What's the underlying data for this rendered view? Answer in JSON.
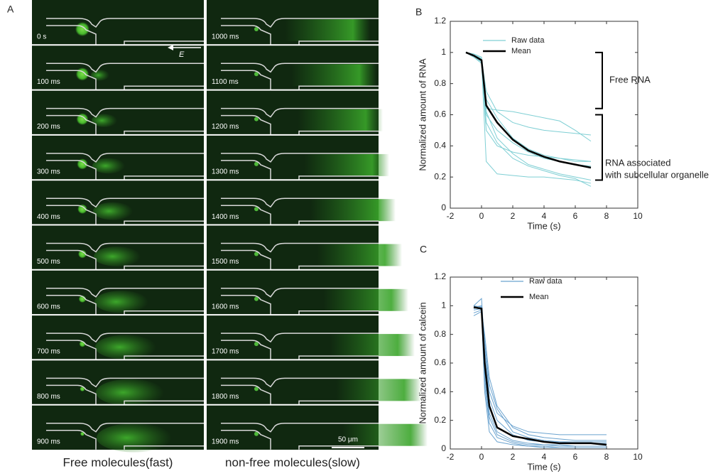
{
  "panel_a": {
    "label": "A",
    "field_label": "E",
    "scale_bar": "50 μm",
    "left": {
      "caption": "Free molecules(fast)",
      "times": [
        "0 s",
        "100 ms",
        "200 ms",
        "300 ms",
        "400 ms",
        "500 ms",
        "600 ms",
        "700 ms",
        "800 ms",
        "900 ms"
      ]
    },
    "right": {
      "caption": "non-free molecules(slow)",
      "times": [
        "1000 ms",
        "1100 ms",
        "1200 ms",
        "1300 ms",
        "1400 ms",
        "1500 ms",
        "1600 ms",
        "1700 ms",
        "1800 ms",
        "1900 ms"
      ]
    }
  },
  "chart_data": [
    {
      "type": "line",
      "label": "B",
      "x_label": "Time  (s)",
      "y_label": "Normalized amount of RNA",
      "xlim": [
        -2,
        10
      ],
      "xticks": [
        -2,
        0,
        2,
        4,
        6,
        8,
        10
      ],
      "ylim": [
        0,
        1.2
      ],
      "yticks": [
        0,
        0.2,
        0.4,
        0.6,
        0.8,
        1,
        1.2
      ],
      "grid": false,
      "legend": "top-left",
      "annotations": [
        [
          "Free RNA"
        ],
        [
          "RNA associated",
          "with subcellular organelle"
        ]
      ],
      "x": [
        -1,
        -0.5,
        0,
        0.3,
        1,
        2,
        3,
        4,
        5,
        6,
        7
      ],
      "series": [
        {
          "name": "Raw data",
          "color": "#7fcfd4",
          "values": [
            [
              1,
              0.99,
              0.97,
              0.64,
              0.63,
              0.62,
              0.6,
              0.58,
              0.56,
              0.5,
              0.43
            ],
            [
              1,
              0.98,
              0.96,
              0.75,
              0.62,
              0.55,
              0.52,
              0.5,
              0.49,
              0.48,
              0.47
            ],
            [
              1,
              0.98,
              0.95,
              0.6,
              0.5,
              0.42,
              0.36,
              0.32,
              0.3,
              0.28,
              0.27
            ],
            [
              1,
              0.97,
              0.94,
              0.3,
              0.22,
              0.21,
              0.2,
              0.2,
              0.19,
              0.18,
              0.16
            ],
            [
              1,
              0.98,
              0.95,
              0.7,
              0.58,
              0.45,
              0.38,
              0.34,
              0.32,
              0.3,
              0.3
            ],
            [
              1,
              0.99,
              0.96,
              0.62,
              0.45,
              0.35,
              0.28,
              0.25,
              0.22,
              0.2,
              0.18
            ],
            [
              1,
              0.98,
              0.95,
              0.55,
              0.42,
              0.32,
              0.27,
              0.24,
              0.21,
              0.19,
              0.14
            ],
            [
              1,
              0.97,
              0.93,
              0.5,
              0.4,
              0.36,
              0.34,
              0.33,
              0.32,
              0.31,
              0.3
            ]
          ]
        },
        {
          "name": "Mean",
          "color": "#000000",
          "values": [
            1,
            0.98,
            0.95,
            0.66,
            0.55,
            0.44,
            0.37,
            0.33,
            0.3,
            0.28,
            0.26
          ]
        }
      ]
    },
    {
      "type": "line",
      "label": "C",
      "x_label": "Time  (s)",
      "y_label": "Normalized amount of calcein",
      "xlim": [
        -2,
        10
      ],
      "xticks": [
        -2,
        0,
        2,
        4,
        6,
        8,
        10
      ],
      "ylim": [
        0,
        1.2
      ],
      "yticks": [
        0,
        0.2,
        0.4,
        0.6,
        0.8,
        1,
        1.2
      ],
      "grid": false,
      "legend": "top-center",
      "x": [
        -0.5,
        0,
        0.2,
        0.5,
        1,
        2,
        3,
        4,
        5,
        6,
        7,
        8
      ],
      "series": [
        {
          "name": "Raw data",
          "color": "#6ba3cf",
          "values": [
            [
              1,
              1.05,
              0.7,
              0.4,
              0.25,
              0.16,
              0.12,
              0.11,
              0.1,
              0.1,
              0.1,
              0.1
            ],
            [
              0.97,
              0.98,
              0.55,
              0.25,
              0.12,
              0.06,
              0.04,
              0.03,
              0.03,
              0.02,
              0.02,
              0.02
            ],
            [
              0.95,
              0.97,
              0.8,
              0.5,
              0.3,
              0.15,
              0.1,
              0.08,
              0.07,
              0.06,
              0.06,
              0.06
            ],
            [
              1,
              0.99,
              0.45,
              0.18,
              0.08,
              0.04,
              0.02,
              0.02,
              0.01,
              0.01,
              0.01,
              0.01
            ],
            [
              0.99,
              1,
              0.65,
              0.35,
              0.2,
              0.1,
              0.06,
              0.05,
              0.05,
              0.04,
              0.04,
              0.04
            ],
            [
              0.93,
              0.96,
              0.5,
              0.22,
              0.1,
              0.05,
              0.03,
              0.03,
              0.02,
              0.02,
              0.02,
              0.02
            ],
            [
              0.98,
              0.99,
              0.75,
              0.45,
              0.28,
              0.12,
              0.08,
              0.06,
              0.05,
              0.05,
              0.05,
              0.05
            ],
            [
              1,
              0.97,
              0.4,
              0.12,
              0.05,
              0.03,
              0.02,
              0.01,
              0.01,
              0.01,
              0.01,
              0.01
            ]
          ]
        },
        {
          "name": "Mean",
          "color": "#000000",
          "values": [
            0.99,
            0.98,
            0.6,
            0.3,
            0.15,
            0.09,
            0.07,
            0.05,
            0.04,
            0.04,
            0.04,
            0.03
          ]
        }
      ]
    }
  ]
}
